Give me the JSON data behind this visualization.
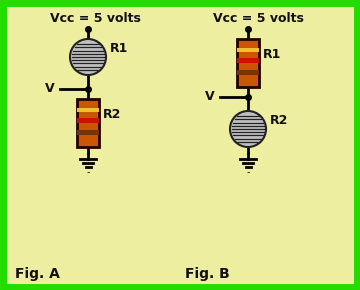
{
  "bg_color": "#eeeea0",
  "border_color": "#22dd00",
  "border_width": 5,
  "title_figA": "Vcc = 5 volts",
  "title_figB": "Vcc = 5 volts",
  "label_figA": "Fig. A",
  "label_figB": "Fig. B",
  "label_r1": "R1",
  "label_r2": "R2",
  "label_v": "V",
  "resistor_body_color": "#cc5500",
  "resistor_border_color": "#220000",
  "resistor_band1_color": "#f0c030",
  "resistor_band2_color": "#cc1100",
  "resistor_band3_color": "#773300",
  "photoresistor_circle_color": "#c0c0c0",
  "photoresistor_line_color": "#222222",
  "wire_color": "#000000",
  "text_color": "#111111",
  "ground_color": "#000000"
}
